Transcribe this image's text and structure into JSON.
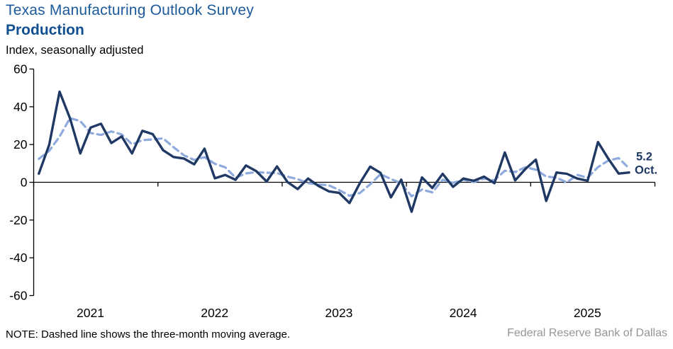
{
  "header": {
    "title": "Texas Manufacturing Outlook Survey",
    "subtitle": "Production",
    "units_label": "Index, seasonally adjusted"
  },
  "chart_data": {
    "type": "line",
    "title": "Texas Manufacturing Outlook Survey — Production",
    "xlabel": "",
    "ylabel": "Index, seasonally adjusted",
    "start_month": "2021-01",
    "end_month": "2025-10",
    "ylim": [
      -60,
      60
    ],
    "ytick_step": 20,
    "grid": "zero-line-only",
    "year_labels": [
      "2021",
      "2022",
      "2023",
      "2024",
      "2025"
    ],
    "series": [
      {
        "name": "Production index, monthly",
        "style": "solid",
        "values": [
          4.6,
          19.9,
          48.0,
          34.0,
          15.3,
          29.0,
          31.0,
          20.8,
          24.3,
          15.3,
          27.3,
          25.5,
          17.0,
          13.4,
          12.6,
          9.5,
          17.8,
          2.1,
          3.9,
          1.3,
          8.9,
          5.9,
          0.4,
          8.4,
          0.2,
          -3.6,
          2.0,
          -1.9,
          -4.8,
          -5.6,
          -11.0,
          -0.5,
          8.3,
          5.0,
          -8.0,
          1.4,
          -15.6,
          2.6,
          -3.0,
          4.5,
          -2.4,
          2.0,
          0.8,
          3.0,
          -0.5,
          15.8,
          1.0,
          7.1,
          12.0,
          -9.9,
          5.2,
          4.5,
          2.0,
          0.8,
          21.3,
          12.5,
          4.6,
          5.2
        ]
      },
      {
        "name": "Three-month moving average",
        "style": "dashed",
        "derived_from": "trailing 3-month moving average of monthly values",
        "seed_prior_months": [
          7.2,
          25.5
        ]
      }
    ],
    "annotation": {
      "value": "5.2",
      "label": "Oct."
    },
    "colors": {
      "line": "#1F3864",
      "moving_average": "#8FAADC",
      "title_blue": "#1B5A9B",
      "axis": "#000000",
      "source_gray": "#939598"
    }
  },
  "footer": {
    "note": "NOTE: Dashed line shows the three-month moving average.",
    "source": "Federal Reserve Bank of Dallas"
  }
}
